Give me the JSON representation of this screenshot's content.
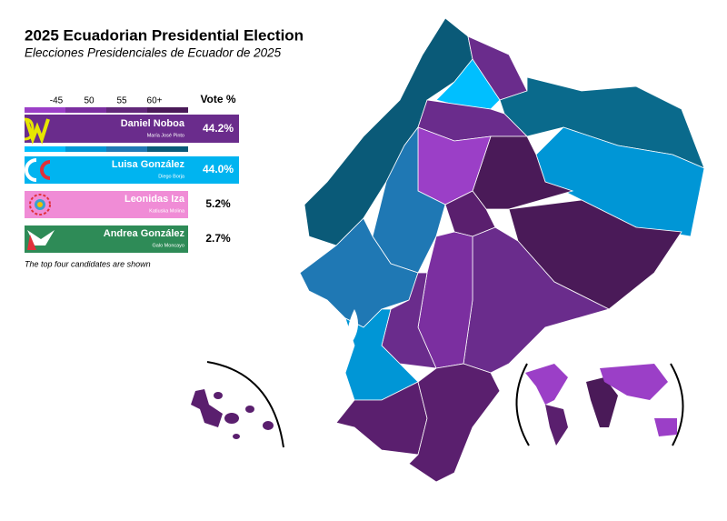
{
  "header": {
    "title": "2025 Ecuadorian Presidential Election",
    "subtitle": "Elecciones Presidenciales de Ecuador de 2025"
  },
  "legend": {
    "scale_labels": [
      "-45",
      "50",
      "55",
      "60+"
    ],
    "vote_header": "Vote %"
  },
  "candidates": [
    {
      "name": "Daniel Noboa",
      "running_mate": "María José Pinto",
      "vote": "44.2%"
    },
    {
      "name": "Luisa González",
      "running_mate": "Diego Borja",
      "vote": "44.0%"
    },
    {
      "name": "Leonidas Iza",
      "running_mate": "Katiuska Molina",
      "vote": "5.2%"
    },
    {
      "name": "Andrea González",
      "running_mate": "Galo Moncayo",
      "vote": "2.7%"
    }
  ],
  "footnote": "The top four candidates are shown"
}
